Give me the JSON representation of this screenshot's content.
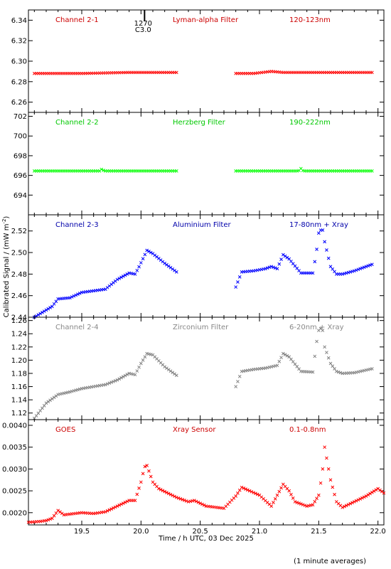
{
  "chart_data": {
    "type": "scatter",
    "xlabel": "Time / h UTC, 03 Dec 2025",
    "ylabel": "Calibrated Signal / (mW m",
    "ylabel_sup": "-2",
    "ylabel_close": ")",
    "footnote": "(1 minute averages)",
    "xlim": [
      19.05,
      22.05
    ],
    "x_ticks": [
      19.5,
      20.0,
      20.5,
      21.0,
      21.5,
      22.0
    ],
    "x_tick_labels": [
      "19.5",
      "20.0",
      "20.5",
      "21.0",
      "21.5",
      "22.0"
    ],
    "flare_marker": {
      "x": 20.03,
      "label_top": "1270",
      "label_bottom": "C3.0"
    },
    "panels": [
      {
        "channel": "Channel 2-1",
        "filter": "Lyman-alpha Filter",
        "band": "120-123nm",
        "color": "#ff0000",
        "text_color": "#cc0000",
        "ylim": [
          6.25,
          6.35
        ],
        "y_ticks": [
          6.26,
          6.28,
          6.3,
          6.32,
          6.34
        ],
        "y_tick_labels": [
          "6.26",
          "6.28",
          "6.30",
          "6.32",
          "6.34"
        ],
        "segments": [
          {
            "x": [
              19.1,
              19.5,
              19.9,
              20.1,
              20.3
            ],
            "y": [
              6.288,
              6.288,
              6.289,
              6.289,
              6.289
            ]
          },
          {
            "x": [
              20.8,
              20.95,
              21.1,
              21.2,
              21.5,
              21.95
            ],
            "y": [
              6.288,
              6.288,
              6.29,
              6.289,
              6.289,
              6.289
            ]
          }
        ]
      },
      {
        "channel": "Channel 2-2",
        "filter": "Herzberg Filter",
        "band": "190-222nm",
        "color": "#00ff00",
        "text_color": "#00c800",
        "ylim": [
          692.0,
          702.4
        ],
        "y_ticks": [
          694,
          696,
          698,
          700,
          702
        ],
        "y_tick_labels": [
          "694",
          "696",
          "698",
          "700",
          "702"
        ],
        "segments": [
          {
            "x": [
              19.1,
              19.65,
              19.67,
              19.69,
              20.3
            ],
            "y": [
              696.45,
              696.45,
              696.65,
              696.45,
              696.45
            ]
          },
          {
            "x": [
              20.8,
              21.33,
              21.35,
              21.37,
              21.95
            ],
            "y": [
              696.45,
              696.45,
              696.7,
              696.45,
              696.45
            ]
          }
        ]
      },
      {
        "channel": "Channel 2-3",
        "filter": "Aluminium Filter",
        "band": "17-80nm + Xray",
        "color": "#0000ff",
        "text_color": "#0000aa",
        "ylim": [
          2.44,
          2.535
        ],
        "y_ticks": [
          2.44,
          2.46,
          2.48,
          2.5,
          2.52
        ],
        "y_tick_labels": [
          "2.44",
          "2.46",
          "2.48",
          "2.50",
          "2.52"
        ],
        "segments": [
          {
            "x": [
              19.1,
              19.25,
              19.3,
              19.4,
              19.5,
              19.7,
              19.8,
              19.9,
              19.95,
              19.98,
              20.02,
              20.05,
              20.1,
              20.2,
              20.3
            ],
            "y": [
              2.44,
              2.45,
              2.457,
              2.458,
              2.463,
              2.466,
              2.475,
              2.481,
              2.48,
              2.486,
              2.495,
              2.502,
              2.499,
              2.49,
              2.482
            ]
          },
          {
            "x": [
              20.8,
              20.85,
              20.95,
              21.05,
              21.1,
              21.15,
              21.2,
              21.25,
              21.35,
              21.45,
              21.48,
              21.5,
              21.53,
              21.55,
              21.6,
              21.65,
              21.7,
              21.8,
              21.95
            ],
            "y": [
              2.468,
              2.482,
              2.483,
              2.485,
              2.487,
              2.485,
              2.498,
              2.494,
              2.481,
              2.481,
              2.5,
              2.518,
              2.523,
              2.51,
              2.487,
              2.48,
              2.48,
              2.483,
              2.489
            ]
          }
        ]
      },
      {
        "channel": "Channel 2-4",
        "filter": "Zirconium Filter",
        "band": "6-20nm + Xray",
        "color": "#808080",
        "text_color": "#888888",
        "ylim": [
          1.11,
          1.265
        ],
        "y_ticks": [
          1.12,
          1.14,
          1.16,
          1.18,
          1.2,
          1.22,
          1.24,
          1.26
        ],
        "y_tick_labels": [
          "1.12",
          "1.14",
          "1.16",
          "1.18",
          "1.20",
          "1.22",
          "1.24",
          "1.26"
        ],
        "segments": [
          {
            "x": [
              19.1,
              19.2,
              19.3,
              19.4,
              19.5,
              19.7,
              19.8,
              19.9,
              19.95,
              20.0,
              20.05,
              20.1,
              20.2,
              20.3
            ],
            "y": [
              1.112,
              1.135,
              1.148,
              1.152,
              1.157,
              1.163,
              1.17,
              1.18,
              1.178,
              1.195,
              1.21,
              1.208,
              1.19,
              1.177
            ]
          },
          {
            "x": [
              20.8,
              20.85,
              20.95,
              21.05,
              21.1,
              21.15,
              21.2,
              21.25,
              21.35,
              21.45,
              21.48,
              21.5,
              21.53,
              21.55,
              21.6,
              21.65,
              21.7,
              21.8,
              21.95
            ],
            "y": [
              1.16,
              1.183,
              1.186,
              1.188,
              1.19,
              1.192,
              1.21,
              1.205,
              1.183,
              1.182,
              1.225,
              1.245,
              1.25,
              1.22,
              1.195,
              1.183,
              1.18,
              1.181,
              1.187
            ]
          }
        ]
      },
      {
        "channel": "GOES",
        "filter": "Xray Sensor",
        "band": "0.1-0.8nm",
        "color": "#ff0000",
        "text_color": "#cc0000",
        "ylim": [
          0.00172,
          0.00413
        ],
        "y_ticks": [
          0.002,
          0.0025,
          0.003,
          0.0035,
          0.004
        ],
        "y_tick_labels": [
          "0.0020",
          "0.0025",
          "0.0030",
          "0.0035",
          "0.0040"
        ],
        "segments": [
          {
            "x": [
              19.05,
              19.15,
              19.2,
              19.25,
              19.3,
              19.35,
              19.5,
              19.6,
              19.7,
              19.8,
              19.9,
              19.95,
              20.0,
              20.03,
              20.05,
              20.1,
              20.15,
              20.3,
              20.4,
              20.45,
              20.55,
              20.7,
              20.8,
              20.85,
              21.0,
              21.1,
              21.15,
              21.2,
              21.25,
              21.3,
              21.4,
              21.45,
              21.5,
              21.53,
              21.55,
              21.6,
              21.65,
              21.7,
              21.8,
              21.9,
              22.0,
              22.05
            ],
            "y": [
              0.00178,
              0.0018,
              0.00182,
              0.00187,
              0.00205,
              0.00195,
              0.002,
              0.00198,
              0.00202,
              0.00215,
              0.00228,
              0.00228,
              0.0027,
              0.00305,
              0.00308,
              0.0027,
              0.00255,
              0.00235,
              0.00225,
              0.00228,
              0.00215,
              0.0021,
              0.00238,
              0.00258,
              0.0024,
              0.00215,
              0.0024,
              0.00265,
              0.0025,
              0.00225,
              0.00215,
              0.00218,
              0.0024,
              0.0029,
              0.0035,
              0.00275,
              0.00225,
              0.00212,
              0.00225,
              0.00238,
              0.00255,
              0.00245
            ]
          }
        ]
      }
    ]
  }
}
